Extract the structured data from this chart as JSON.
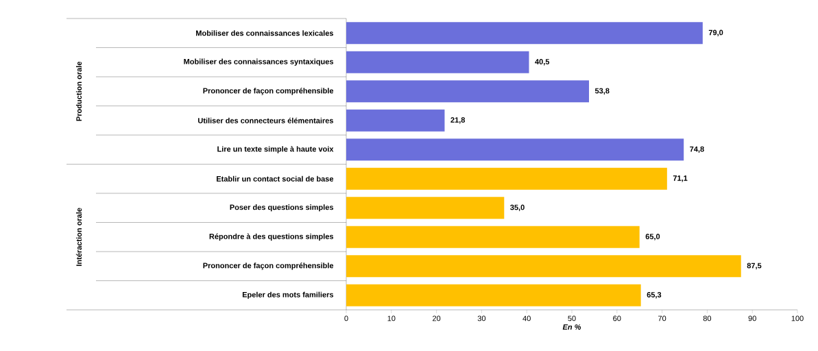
{
  "chart_data": {
    "type": "bar",
    "orientation": "horizontal",
    "categories": [
      "Mobiliser des connaissances lexicales",
      "Mobiliser des connaissances syntaxiques",
      "Prononcer de façon compréhensible",
      "Utiliser des connecteurs élémentaires",
      "Lire un texte simple à haute voix",
      "Etablir un contact social de base",
      "Poser des questions simples",
      "Répondre à des questions simples",
      "Prononcer de façon compréhensible",
      "Epeler des mots familiers"
    ],
    "values": [
      79.0,
      40.5,
      53.8,
      21.8,
      74.8,
      71.1,
      35.0,
      65.0,
      87.5,
      65.3
    ],
    "value_labels": [
      "79,0",
      "40,5",
      "53,8",
      "21,8",
      "74,8",
      "71,1",
      "35,0",
      "65,0",
      "87,5",
      "65,3"
    ],
    "colors": [
      "#6b6fdb",
      "#6b6fdb",
      "#6b6fdb",
      "#6b6fdb",
      "#6b6fdb",
      "#ffc000",
      "#ffc000",
      "#ffc000",
      "#ffc000",
      "#ffc000"
    ],
    "xlabel": "En %",
    "xlim": [
      0,
      100
    ],
    "xticks": [
      0,
      10,
      20,
      30,
      40,
      50,
      60,
      70,
      80,
      90,
      100
    ],
    "annotations": [
      "Production orale",
      "Intéraction orale"
    ]
  }
}
